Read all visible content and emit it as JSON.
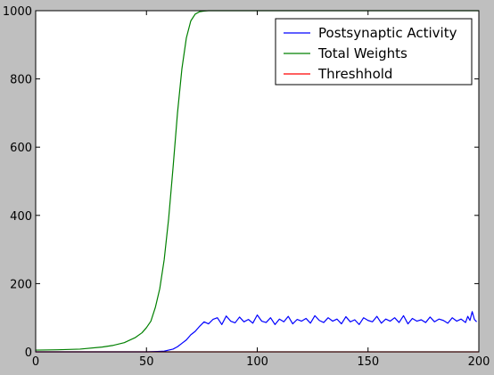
{
  "chart_data": {
    "type": "line",
    "title": "",
    "xlabel": "",
    "ylabel": "",
    "xlim": [
      0,
      200
    ],
    "ylim": [
      0,
      1000
    ],
    "x_ticks": [
      0,
      50,
      100,
      150,
      200
    ],
    "y_ticks": [
      0,
      200,
      400,
      600,
      800,
      1000
    ],
    "grid": false,
    "legend_position": "top-right",
    "series": [
      {
        "name": "Postsynaptic Activity",
        "color": "#0000ff",
        "x": [
          0,
          50,
          55,
          58,
          60,
          62,
          64,
          66,
          68,
          70,
          72,
          74,
          76,
          78,
          80,
          82,
          84,
          86,
          88,
          90,
          92,
          94,
          96,
          98,
          100,
          102,
          104,
          106,
          108,
          110,
          112,
          114,
          116,
          118,
          120,
          122,
          124,
          126,
          128,
          130,
          132,
          134,
          136,
          138,
          140,
          142,
          144,
          146,
          148,
          150,
          152,
          154,
          156,
          158,
          160,
          162,
          164,
          166,
          168,
          170,
          172,
          174,
          176,
          178,
          180,
          182,
          184,
          186,
          188,
          190,
          192,
          194,
          195,
          196,
          197,
          198,
          199
        ],
        "values": [
          0,
          0,
          1,
          2,
          5,
          8,
          15,
          25,
          35,
          50,
          60,
          75,
          88,
          82,
          95,
          100,
          80,
          105,
          90,
          85,
          102,
          88,
          95,
          84,
          108,
          90,
          86,
          100,
          80,
          96,
          88,
          104,
          82,
          95,
          90,
          98,
          84,
          106,
          92,
          86,
          100,
          90,
          96,
          82,
          103,
          88,
          94,
          80,
          100,
          92,
          88,
          104,
          84,
          96,
          90,
          100,
          86,
          106,
          82,
          98,
          90,
          94,
          86,
          102,
          88,
          96,
          92,
          84,
          100,
          90,
          96,
          86,
          104,
          92,
          118,
          95,
          88
        ]
      },
      {
        "name": "Total Weights",
        "color": "#008000",
        "x": [
          0,
          10,
          20,
          30,
          35,
          40,
          45,
          48,
          50,
          52,
          54,
          56,
          58,
          60,
          62,
          64,
          66,
          68,
          70,
          72,
          74,
          76,
          78,
          80,
          90,
          100,
          150,
          200
        ],
        "values": [
          5,
          6,
          8,
          14,
          19,
          27,
          42,
          56,
          71,
          90,
          130,
          185,
          270,
          390,
          540,
          700,
          830,
          920,
          970,
          990,
          997,
          999,
          1000,
          1000,
          1000,
          1000,
          1000,
          1000
        ]
      },
      {
        "name": "Threshhold",
        "color": "#ff0000",
        "x": [
          0,
          200
        ],
        "values": [
          0,
          0
        ]
      }
    ]
  }
}
